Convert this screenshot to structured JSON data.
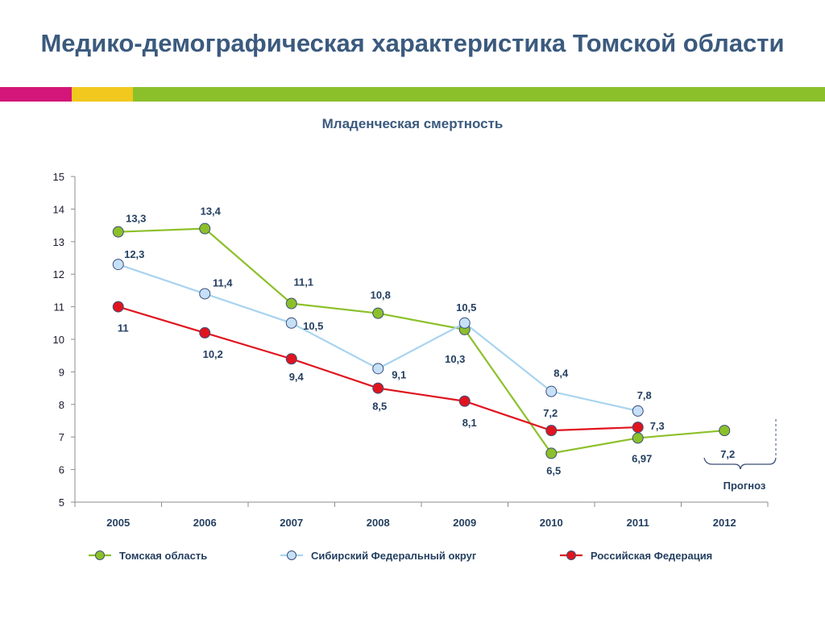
{
  "page": {
    "title": "Медико-демографическая характеристика Томской области",
    "stripe_colors": [
      "#d4157a",
      "#f0c81e",
      "#8cc02a"
    ]
  },
  "chart_data": {
    "type": "line",
    "title": "Младенческая смертность",
    "categories": [
      "2005",
      "2006",
      "2007",
      "2008",
      "2009",
      "2010",
      "2011",
      "2012"
    ],
    "ylim": [
      5,
      15
    ],
    "yticks": [
      5,
      6,
      7,
      8,
      9,
      10,
      11,
      12,
      13,
      14,
      15
    ],
    "grid": false,
    "legend_position": "bottom",
    "series": [
      {
        "name": "Томская область",
        "color": "#8cc02a",
        "marker_fill": "#8cc02a",
        "values": [
          13.3,
          13.4,
          11.1,
          10.8,
          10.3,
          6.5,
          6.97,
          7.2
        ],
        "labels": [
          "13,3",
          "13,4",
          "11,1",
          "10,8",
          "10,3",
          "6,5",
          "6,97",
          "7,2"
        ]
      },
      {
        "name": "Сибирский Федеральный округ",
        "color": "#a8d4f0",
        "marker_fill": "#c6e0f8",
        "values": [
          12.3,
          11.4,
          10.5,
          9.1,
          10.5,
          8.4,
          7.8,
          null
        ],
        "labels": [
          "12,3",
          "11,4",
          "10,5",
          "9,1",
          "10,5",
          "8,4",
          "7,8",
          null
        ]
      },
      {
        "name": "Российская Федерация",
        "color": "#e0141e",
        "marker_fill": "#e0141e",
        "values": [
          11,
          10.2,
          9.4,
          8.5,
          8.1,
          7.2,
          7.3,
          null
        ],
        "labels": [
          "11",
          "10,2",
          "9,4",
          "8,5",
          "8,1",
          "7,2",
          "7,3",
          null
        ]
      }
    ],
    "annotation": "Прогноз"
  }
}
